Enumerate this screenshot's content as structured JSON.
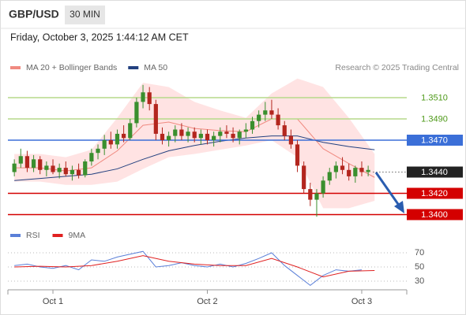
{
  "symbol": "GBP/USD",
  "timeframe": "30 MIN",
  "timestamp": "Friday, October 3, 2025 1:44:12 AM CET",
  "source": "Research © 2025 Trading Central",
  "chart_data": [
    {
      "type": "candlestick",
      "xlim": [
        -7,
        55
      ],
      "ylim": [
        1.339,
        1.3535
      ],
      "up_color": "#3a8f2e",
      "down_color": "#b3261e",
      "x": [
        -6,
        -5,
        -4,
        -3,
        -2,
        -1,
        0,
        1,
        2,
        3,
        4,
        5,
        6,
        7,
        8,
        9,
        10,
        11,
        12,
        13,
        14,
        15,
        16,
        17,
        18,
        19,
        20,
        21,
        22,
        23,
        24,
        25,
        26,
        27,
        28,
        29,
        30,
        31,
        32,
        33,
        34,
        35,
        36,
        37,
        38,
        39,
        40,
        41,
        42,
        43,
        44,
        45,
        46,
        47,
        48,
        49
      ],
      "open": [
        1.344,
        1.3448,
        1.3455,
        1.3444,
        1.3452,
        1.3442,
        1.3446,
        1.344,
        1.3444,
        1.3438,
        1.3442,
        1.3437,
        1.345,
        1.3458,
        1.3462,
        1.347,
        1.3466,
        1.3476,
        1.3472,
        1.3486,
        1.3506,
        1.3515,
        1.3504,
        1.3476,
        1.347,
        1.3474,
        1.348,
        1.3474,
        1.3478,
        1.3472,
        1.3476,
        1.347,
        1.3474,
        1.3478,
        1.3476,
        1.3472,
        1.3478,
        1.348,
        1.3488,
        1.3494,
        1.3498,
        1.3494,
        1.3484,
        1.3474,
        1.3466,
        1.3446,
        1.3424,
        1.3414,
        1.342,
        1.3432,
        1.344,
        1.3446,
        1.3442,
        1.3436,
        1.3444,
        1.344
      ],
      "high": [
        1.3452,
        1.3462,
        1.346,
        1.3456,
        1.3455,
        1.345,
        1.3452,
        1.3448,
        1.345,
        1.3446,
        1.3448,
        1.3452,
        1.3462,
        1.3466,
        1.3475,
        1.3478,
        1.348,
        1.3484,
        1.349,
        1.351,
        1.3522,
        1.352,
        1.3508,
        1.3482,
        1.3478,
        1.3484,
        1.3486,
        1.3482,
        1.3482,
        1.348,
        1.348,
        1.3478,
        1.3482,
        1.3484,
        1.3482,
        1.348,
        1.3486,
        1.3492,
        1.3498,
        1.3506,
        1.3508,
        1.35,
        1.3488,
        1.348,
        1.347,
        1.345,
        1.343,
        1.3424,
        1.3436,
        1.3444,
        1.345,
        1.3454,
        1.3448,
        1.3446,
        1.345,
        1.3446
      ],
      "low": [
        1.3436,
        1.3444,
        1.344,
        1.344,
        1.3438,
        1.3436,
        1.3438,
        1.3434,
        1.3436,
        1.3432,
        1.3434,
        1.3435,
        1.3446,
        1.3452,
        1.3456,
        1.3462,
        1.3462,
        1.3468,
        1.347,
        1.3482,
        1.35,
        1.3498,
        1.347,
        1.3466,
        1.3464,
        1.3468,
        1.347,
        1.3468,
        1.3468,
        1.3466,
        1.3466,
        1.3464,
        1.3468,
        1.3472,
        1.3468,
        1.3466,
        1.3472,
        1.3476,
        1.3482,
        1.3488,
        1.349,
        1.348,
        1.347,
        1.3462,
        1.344,
        1.342,
        1.3408,
        1.3398,
        1.3416,
        1.3428,
        1.3434,
        1.3438,
        1.3432,
        1.343,
        1.3436,
        1.3436
      ],
      "close": [
        1.3448,
        1.3455,
        1.3444,
        1.3452,
        1.3442,
        1.3446,
        1.344,
        1.3444,
        1.3438,
        1.3442,
        1.3437,
        1.345,
        1.3458,
        1.3462,
        1.347,
        1.3466,
        1.3476,
        1.3472,
        1.3486,
        1.3506,
        1.3515,
        1.3504,
        1.3476,
        1.347,
        1.3474,
        1.348,
        1.3474,
        1.3478,
        1.3472,
        1.3476,
        1.347,
        1.3474,
        1.3478,
        1.3476,
        1.3472,
        1.3478,
        1.348,
        1.3488,
        1.3494,
        1.3498,
        1.3494,
        1.3484,
        1.3474,
        1.3466,
        1.3446,
        1.3424,
        1.3414,
        1.342,
        1.3432,
        1.344,
        1.3446,
        1.3442,
        1.3436,
        1.3444,
        1.344,
        1.3442
      ],
      "overlays": [
        {
          "name": "MA 20 + Bollinger Bands",
          "color": "#f08a80",
          "band_color": "#ffdcdc",
          "x": [
            -6,
            -2,
            2,
            6,
            10,
            14,
            18,
            22,
            26,
            30,
            34,
            38,
            42,
            46,
            50
          ],
          "values": [
            1.3444,
            1.3444,
            1.3441,
            1.3444,
            1.346,
            1.3484,
            1.3487,
            1.3481,
            1.3479,
            1.3478,
            1.349,
            1.349,
            1.3462,
            1.3448,
            1.3435
          ],
          "upper": [
            1.3457,
            1.3457,
            1.3454,
            1.3461,
            1.3491,
            1.3524,
            1.352,
            1.3506,
            1.3498,
            1.3491,
            1.3514,
            1.3528,
            1.352,
            1.3491,
            1.3457
          ],
          "lower": [
            1.3431,
            1.3431,
            1.3428,
            1.3428,
            1.3431,
            1.3443,
            1.3454,
            1.3457,
            1.3461,
            1.3465,
            1.347,
            1.3454,
            1.3406,
            1.3406,
            1.3413
          ]
        },
        {
          "name": "MA 50",
          "color": "#22407f",
          "x": [
            -6,
            -2,
            2,
            6,
            10,
            14,
            18,
            22,
            26,
            30,
            34,
            38,
            42,
            46,
            50
          ],
          "values": [
            1.3432,
            1.3434,
            1.3436,
            1.3438,
            1.3443,
            1.3452,
            1.346,
            1.3465,
            1.3469,
            1.3472,
            1.3474,
            1.3474,
            1.3468,
            1.3464,
            1.3461
          ]
        }
      ],
      "levels": [
        {
          "value": 1.351,
          "label": "1.3510",
          "color": "#b5d98a",
          "label_color": "#4f9a1a",
          "label_box": false,
          "line": "solid"
        },
        {
          "value": 1.349,
          "label": "1.3490",
          "color": "#b5d98a",
          "label_color": "#4f9a1a",
          "label_box": false,
          "line": "solid"
        },
        {
          "value": 1.347,
          "label": "1.3470",
          "color": "#3b6fd8",
          "label_color": "#ffffff",
          "label_box": true,
          "line": "solid"
        },
        {
          "value": 1.344,
          "label": "1.3440",
          "color": "#666666",
          "label_color": "#ffffff",
          "label_box": true,
          "line": "dotted"
        },
        {
          "value": 1.342,
          "label": "1.3420",
          "color": "#d40000",
          "label_color": "#ffffff",
          "label_box": true,
          "line": "solid"
        },
        {
          "value": 1.34,
          "label": "1.3400",
          "color": "#d40000",
          "label_color": "#ffffff",
          "label_box": true,
          "line": "solid"
        }
      ]
    },
    {
      "type": "line",
      "xlim": [
        -7,
        55
      ],
      "ylim": [
        20,
        80
      ],
      "yticks": [
        70,
        50,
        30
      ],
      "grid": true,
      "xticks": [
        {
          "value": 0,
          "label": "Oct 1"
        },
        {
          "value": 24,
          "label": "Oct 2"
        },
        {
          "value": 48,
          "label": "Oct 3"
        }
      ],
      "series": [
        {
          "name": "RSI",
          "color": "#5a7fd8",
          "x": [
            -6,
            -4,
            -2,
            0,
            2,
            4,
            6,
            8,
            10,
            12,
            14,
            16,
            18,
            20,
            22,
            24,
            26,
            28,
            30,
            32,
            34,
            36,
            38,
            40,
            42,
            44,
            46,
            48
          ],
          "values": [
            52,
            54,
            50,
            48,
            52,
            46,
            60,
            58,
            64,
            68,
            72,
            50,
            52,
            56,
            52,
            50,
            54,
            50,
            55,
            62,
            70,
            52,
            38,
            24,
            38,
            46,
            44,
            46
          ]
        },
        {
          "name": "9MA",
          "color": "#e02020",
          "x": [
            -6,
            -2,
            2,
            6,
            10,
            14,
            18,
            22,
            26,
            30,
            34,
            38,
            42,
            46,
            50
          ],
          "values": [
            50,
            51,
            50,
            52,
            58,
            66,
            58,
            54,
            52,
            52,
            62,
            50,
            36,
            44,
            45
          ]
        }
      ]
    }
  ]
}
